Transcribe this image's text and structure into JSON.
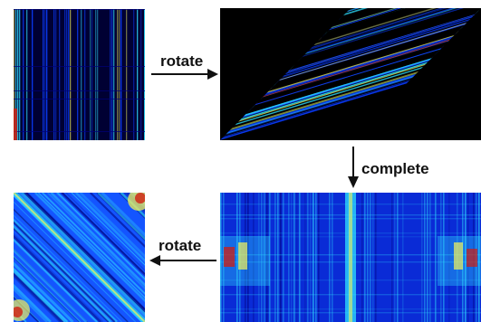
{
  "steps": {
    "rotate_top": "rotate",
    "complete": "complete",
    "rotate_bottom": "rotate"
  },
  "colors": {
    "background": "#ffffff",
    "arrow": "#111111",
    "dark_blue": "#00007a",
    "blue": "#0a3cff",
    "cyan": "#2fe2ff",
    "yellow": "#f3f35a",
    "red": "#d21e10"
  },
  "panels": [
    {
      "name": "sparse-matrix",
      "colormap": "jet",
      "content": "sparse vertical streaks"
    },
    {
      "name": "rotated-sparse-matrix",
      "colormap": "jet",
      "content": "diagonal streaks on black"
    },
    {
      "name": "completed-matrix",
      "colormap": "jet",
      "content": "dense symmetric pattern"
    },
    {
      "name": "rotated-completed-matrix",
      "colormap": "jet",
      "content": "dense diagonal bands"
    }
  ]
}
